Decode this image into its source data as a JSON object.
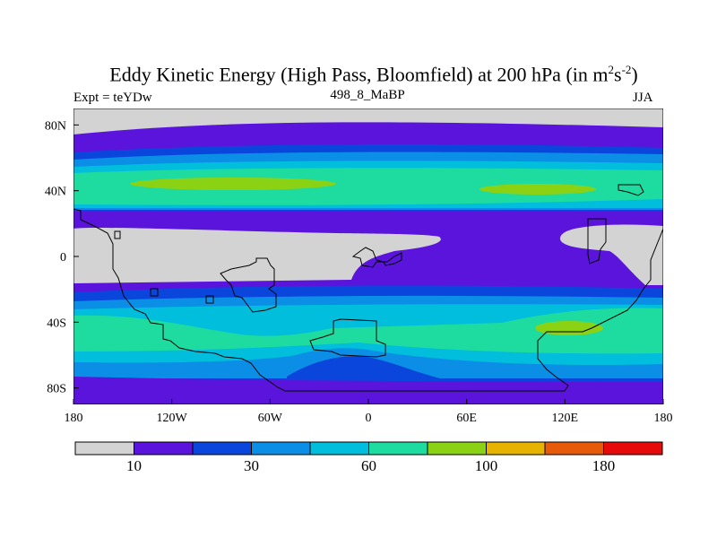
{
  "chart_data": {
    "type": "heatmap",
    "title_main": "Eddy Kinetic Energy (High Pass, Bloomfield) at 200 hPa (in m",
    "title_sup1": "2",
    "title_mid": "s",
    "title_sup2": "-2",
    "title_end": ")",
    "subtitle": "498_8_MaBP",
    "left_label": "Expt = teYDw",
    "right_label": "JJA",
    "x_ticks": [
      "180",
      "120W",
      "60W",
      "0",
      "60E",
      "120E",
      "180"
    ],
    "y_ticks": [
      "80N",
      "40N",
      "0",
      "40S",
      "80S"
    ],
    "x_range": [
      -180,
      180
    ],
    "y_range": [
      -90,
      90
    ],
    "colorbar": {
      "labels": [
        "10",
        "30",
        "60",
        "100",
        "180"
      ],
      "colors": [
        "#d3d3d3",
        "#5a14dc",
        "#0a46dc",
        "#0a8ee6",
        "#00bedc",
        "#1edca0",
        "#8cd214",
        "#e6b400",
        "#e65a0a",
        "#e60a0a"
      ]
    }
  },
  "colors": {
    "gray": "#d3d3d3",
    "level1": "#5a14dc",
    "level2": "#0a46dc",
    "level3": "#0a8ee6",
    "level4": "#00bedc",
    "level5": "#1edca0",
    "level6": "#8cd214"
  }
}
